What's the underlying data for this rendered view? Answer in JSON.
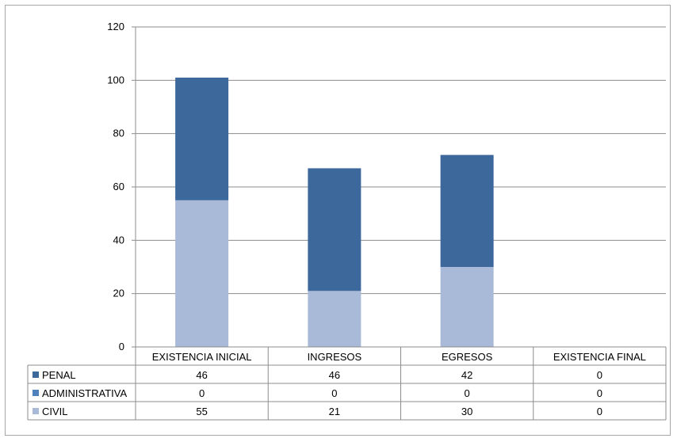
{
  "chart_data": {
    "type": "bar",
    "stacked": true,
    "categories": [
      "EXISTENCIA INICIAL",
      "INGRESOS",
      "EGRESOS",
      "EXISTENCIA FINAL"
    ],
    "series": [
      {
        "name": "PENAL",
        "values": [
          46,
          46,
          42,
          0
        ],
        "color": "#3d689c"
      },
      {
        "name": "ADMINISTRATIVA",
        "values": [
          0,
          0,
          0,
          0
        ],
        "color": "#4f81bd"
      },
      {
        "name": "CIVIL",
        "values": [
          55,
          21,
          30,
          0
        ],
        "color": "#a9b9d8"
      }
    ],
    "stack_order_bottom_to_top": [
      "CIVIL",
      "ADMINISTRATIVA",
      "PENAL"
    ],
    "ylim": [
      0,
      120
    ],
    "yticks": [
      "0",
      "20",
      "40",
      "60",
      "80",
      "100",
      "120"
    ],
    "grid": true,
    "legend": "data-table",
    "title": "",
    "xlabel": "",
    "ylabel": ""
  }
}
